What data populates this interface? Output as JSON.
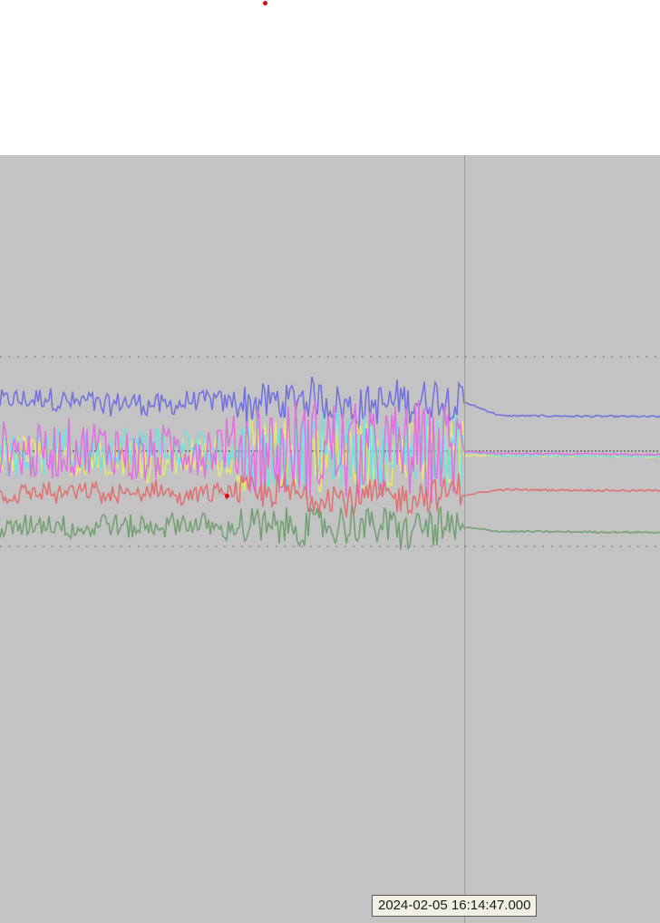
{
  "cursor": {
    "timestamp": "2024-02-05 16:14:47.000"
  },
  "colors": {
    "plot_background": "#c3c3c3",
    "top_background": "#ffffff",
    "marker": "#cc1111",
    "reference_line": "#7a7a7a",
    "series": [
      "#7070e0",
      "#e8e870",
      "#70e0e0",
      "#e070e0",
      "#e07070",
      "#70a070"
    ]
  },
  "chart_data": {
    "type": "line",
    "series": [
      {
        "color": "#7070e0",
        "baseline": 0.76,
        "noise_before": 0.12,
        "settle": 0.69
      },
      {
        "color": "#e8e870",
        "baseline": 0.48,
        "noise_before": 0.22,
        "settle": 0.48
      },
      {
        "color": "#70e0e0",
        "baseline": 0.5,
        "noise_before": 0.22,
        "settle": 0.48
      },
      {
        "color": "#e070e0",
        "baseline": 0.5,
        "noise_before": 0.3,
        "settle": 0.49
      },
      {
        "color": "#e07070",
        "baseline": 0.27,
        "noise_before": 0.1,
        "settle": 0.3
      },
      {
        "color": "#70a070",
        "baseline": 0.1,
        "noise_before": 0.12,
        "settle": 0.08
      }
    ],
    "reference_lines": [
      "upper",
      "center",
      "lower"
    ],
    "cursor_position": 0.703,
    "transient_end": 0.703
  }
}
